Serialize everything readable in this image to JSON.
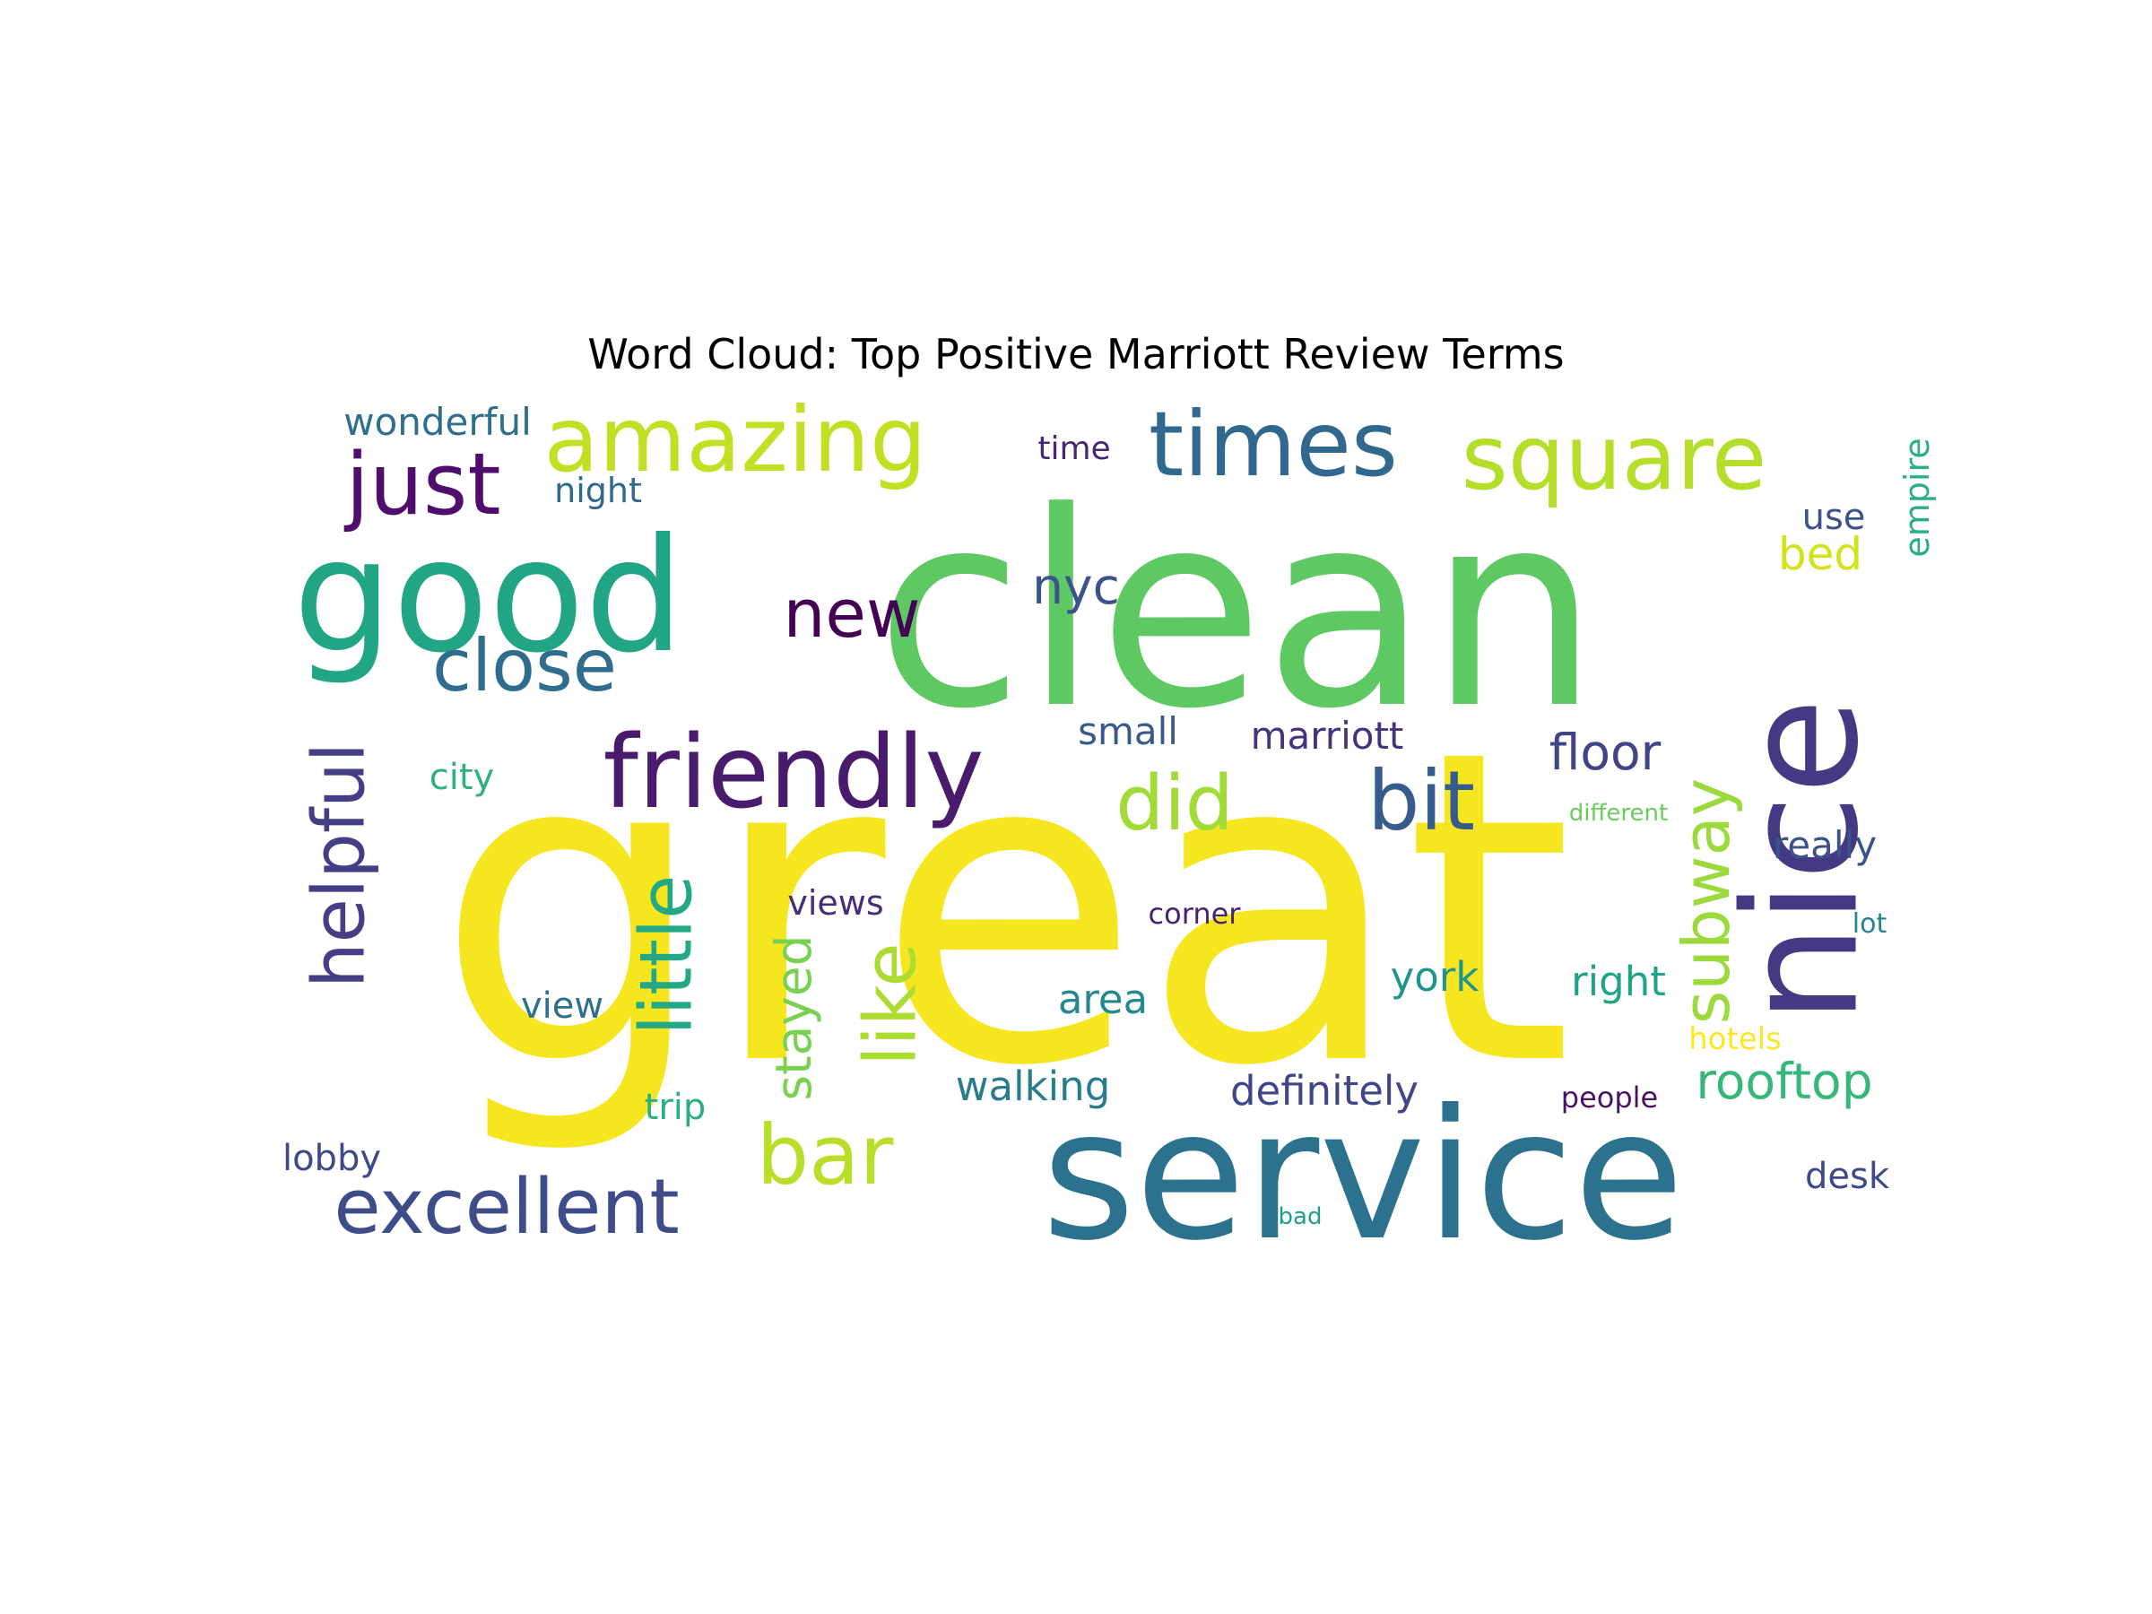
{
  "chart_data": {
    "type": "wordcloud",
    "title": "Word Cloud: Top Positive Marriott Review Terms",
    "words": [
      {
        "text": "great",
        "color": "#f6e620"
      },
      {
        "text": "clean",
        "color": "#5ec962"
      },
      {
        "text": "service",
        "color": "#2c728e"
      },
      {
        "text": "nice",
        "color": "#443983"
      },
      {
        "text": "good",
        "color": "#21a585"
      },
      {
        "text": "friendly",
        "color": "#481b6d"
      },
      {
        "text": "square",
        "color": "#b5de2b"
      },
      {
        "text": "amazing",
        "color": "#c2df23"
      },
      {
        "text": "times",
        "color": "#31688e"
      },
      {
        "text": "just",
        "color": "#4f0e6e"
      },
      {
        "text": "excellent",
        "color": "#3e4c8a"
      },
      {
        "text": "close",
        "color": "#2f6c8e"
      },
      {
        "text": "helpful",
        "color": "#433e85"
      },
      {
        "text": "bit",
        "color": "#365c8d"
      },
      {
        "text": "bar",
        "color": "#b8de29"
      },
      {
        "text": "new",
        "color": "#440154"
      },
      {
        "text": "did",
        "color": "#a2da37"
      },
      {
        "text": "little",
        "color": "#22a884"
      },
      {
        "text": "like",
        "color": "#addc30"
      },
      {
        "text": "subway",
        "color": "#9bd93c"
      },
      {
        "text": "rooftop",
        "color": "#35b779"
      },
      {
        "text": "floor",
        "color": "#414487"
      },
      {
        "text": "stayed",
        "color": "#7ad151"
      },
      {
        "text": "nyc",
        "color": "#3b528b"
      },
      {
        "text": "wonderful",
        "color": "#2e6f8e"
      },
      {
        "text": "definitely",
        "color": "#404588"
      },
      {
        "text": "marriott",
        "color": "#46337e"
      },
      {
        "text": "walking",
        "color": "#297b8e"
      },
      {
        "text": "area",
        "color": "#23898e"
      },
      {
        "text": "york",
        "color": "#1f968b"
      },
      {
        "text": "right",
        "color": "#20a386"
      },
      {
        "text": "small",
        "color": "#38598c"
      },
      {
        "text": "really",
        "color": "#3b528b"
      },
      {
        "text": "bed",
        "color": "#d2e21b"
      },
      {
        "text": "views",
        "color": "#472c7a"
      },
      {
        "text": "view",
        "color": "#2d708e"
      },
      {
        "text": "empire",
        "color": "#2ab07f"
      },
      {
        "text": "trip",
        "color": "#2ab07f"
      },
      {
        "text": "city",
        "color": "#2db27d"
      },
      {
        "text": "lobby",
        "color": "#3e4989"
      },
      {
        "text": "desk",
        "color": "#3f4889"
      },
      {
        "text": "use",
        "color": "#3b528b"
      },
      {
        "text": "night",
        "color": "#31688e"
      },
      {
        "text": "time",
        "color": "#482677"
      },
      {
        "text": "hotels",
        "color": "#fde725"
      },
      {
        "text": "corner",
        "color": "#482173"
      },
      {
        "text": "people",
        "color": "#471365"
      },
      {
        "text": "lot",
        "color": "#26828e"
      },
      {
        "text": "different",
        "color": "#6ccd5a"
      },
      {
        "text": "bad",
        "color": "#1f9e89"
      }
    ]
  }
}
